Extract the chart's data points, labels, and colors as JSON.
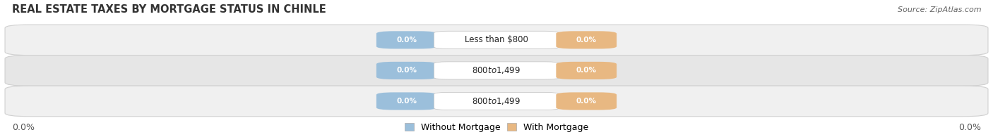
{
  "title": "REAL ESTATE TAXES BY MORTGAGE STATUS IN CHINLE",
  "source": "Source: ZipAtlas.com",
  "rows": [
    {
      "label": "Less than $800",
      "without_mortgage": 0.0,
      "with_mortgage": 0.0
    },
    {
      "label": "$800 to $1,499",
      "without_mortgage": 0.0,
      "with_mortgage": 0.0
    },
    {
      "label": "$800 to $1,499",
      "without_mortgage": 0.0,
      "with_mortgage": 0.0
    }
  ],
  "without_mortgage_color": "#9bbfdb",
  "with_mortgage_color": "#e8b882",
  "row_bg_colors": [
    "#f0f0f0",
    "#e6e6e6",
    "#f0f0f0"
  ],
  "row_border_color": "#d0d0d0",
  "x_left_label": "0.0%",
  "x_right_label": "0.0%",
  "legend_without": "Without Mortgage",
  "legend_with": "With Mortgage",
  "title_fontsize": 10.5,
  "source_fontsize": 8,
  "label_fontsize": 9,
  "tick_fontsize": 9,
  "pill_text_color": "white",
  "center_label_color": "#222222"
}
